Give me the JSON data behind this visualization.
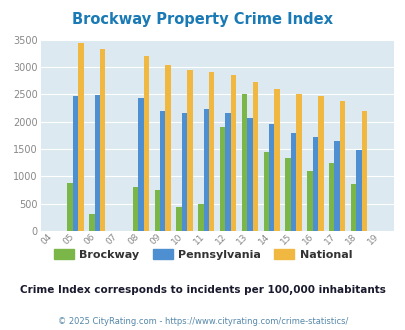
{
  "title": "Brockway Property Crime Index",
  "years": [
    "04",
    "05",
    "06",
    "07",
    "08",
    "09",
    "10",
    "11",
    "12",
    "13",
    "14",
    "15",
    "16",
    "17",
    "18",
    "19"
  ],
  "brockway": [
    0,
    880,
    310,
    0,
    800,
    750,
    440,
    490,
    1900,
    2500,
    1450,
    1330,
    1090,
    1240,
    860,
    0
  ],
  "pennsylvania": [
    0,
    2460,
    2480,
    0,
    2440,
    2200,
    2160,
    2240,
    2150,
    2070,
    1950,
    1800,
    1710,
    1640,
    1490,
    0
  ],
  "national": [
    0,
    3430,
    3330,
    0,
    3200,
    3040,
    2950,
    2900,
    2860,
    2720,
    2590,
    2500,
    2470,
    2380,
    2200,
    0
  ],
  "bar_width": 0.25,
  "brockway_color": "#7ab648",
  "pennsylvania_color": "#4d8fd1",
  "national_color": "#f0b840",
  "bg_color": "#dce9f0",
  "ylim": [
    0,
    3500
  ],
  "yticks": [
    0,
    500,
    1000,
    1500,
    2000,
    2500,
    3000,
    3500
  ],
  "grid_color": "#ffffff",
  "subtitle": "Crime Index corresponds to incidents per 100,000 inhabitants",
  "footer": "© 2025 CityRating.com - https://www.cityrating.com/crime-statistics/",
  "title_color": "#1a7ab5",
  "subtitle_color": "#1a1a2e",
  "footer_color": "#5588aa"
}
